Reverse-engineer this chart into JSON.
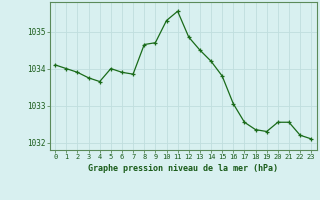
{
  "hours": [
    0,
    1,
    2,
    3,
    4,
    5,
    6,
    7,
    8,
    9,
    10,
    11,
    12,
    13,
    14,
    15,
    16,
    17,
    18,
    19,
    20,
    21,
    22,
    23
  ],
  "pressure": [
    1034.1,
    1034.0,
    1033.9,
    1033.75,
    1033.65,
    1034.0,
    1033.9,
    1033.85,
    1034.65,
    1034.7,
    1035.3,
    1035.55,
    1034.85,
    1034.5,
    1034.2,
    1033.8,
    1033.05,
    1032.55,
    1032.35,
    1032.3,
    1032.55,
    1032.55,
    1032.2,
    1032.1
  ],
  "line_color": "#1a6b1a",
  "marker": "+",
  "bg_color": "#d8f0f0",
  "grid_color": "#c0dede",
  "xlabel": "Graphe pression niveau de la mer (hPa)",
  "xlabel_color": "#1a5c1a",
  "ytick_color": "#1a5c1a",
  "xtick_color": "#1a5c1a",
  "ylim": [
    1031.8,
    1035.8
  ],
  "yticks": [
    1032,
    1033,
    1034,
    1035
  ],
  "spine_color": "#5a8a5a",
  "axis_bottom_color": "#1a5c1a"
}
